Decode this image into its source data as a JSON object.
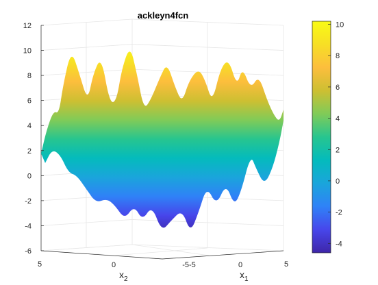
{
  "chart_data": {
    "type": "surface",
    "title": "ackleyn4fcn",
    "xlabel": "x",
    "xlabel_sub": "1",
    "ylabel": "x",
    "ylabel_sub": "2",
    "zlim": [
      -6,
      12
    ],
    "zticks": [
      "-6",
      "-4",
      "-2",
      "0",
      "2",
      "4",
      "6",
      "8",
      "10",
      "12"
    ],
    "x1_ticks": [
      "-5",
      "0",
      "5"
    ],
    "x2_ticks": [
      "5",
      "0",
      "-5"
    ],
    "colorbar": {
      "range": [
        -4.6,
        10.2
      ],
      "ticks": [
        "-4",
        "-2",
        "0",
        "2",
        "4",
        "6",
        "8",
        "10"
      ]
    },
    "colormap": [
      "#3e26a8",
      "#4746eb",
      "#2f82f7",
      "#1aa5db",
      "#04bbbc",
      "#27c58f",
      "#80cb58",
      "#cdbf32",
      "#fcbe3d",
      "#f7df25",
      "#f9fb15"
    ],
    "grid": true
  }
}
